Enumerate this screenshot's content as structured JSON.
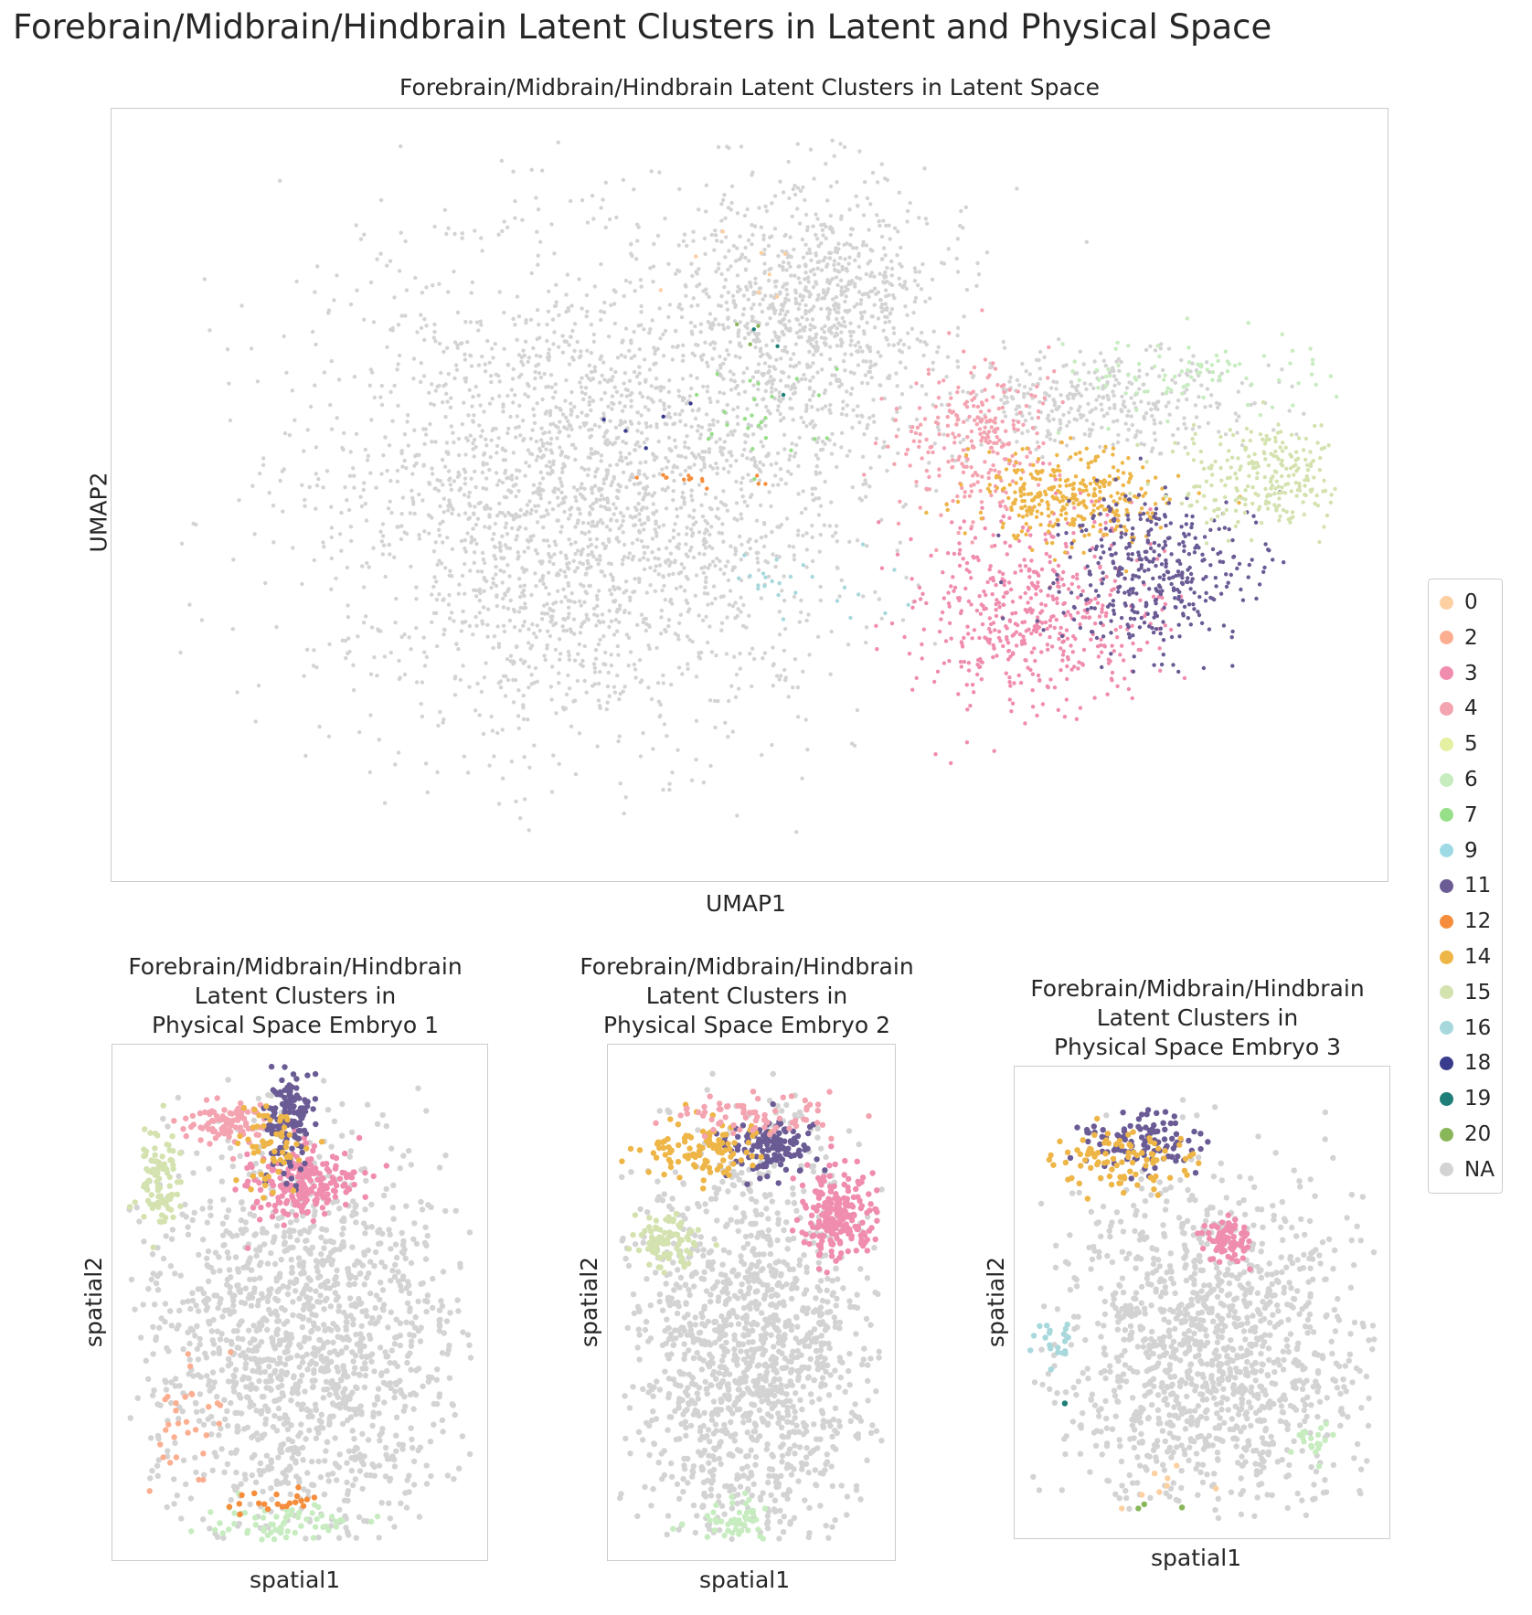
{
  "suptitle": "Forebrain/Midbrain/Hindbrain Latent Clusters in Latent and Physical Space",
  "panels": {
    "umap": {
      "title": "Forebrain/Midbrain/Hindbrain Latent Clusters in Latent Space",
      "xlabel": "UMAP1",
      "ylabel": "UMAP2"
    },
    "embryo1": {
      "title": "Forebrain/Midbrain/Hindbrain\nLatent Clusters in\nPhysical Space Embryo 1",
      "xlabel": "spatial1",
      "ylabel": "spatial2"
    },
    "embryo2": {
      "title": "Forebrain/Midbrain/Hindbrain\nLatent Clusters in\nPhysical Space Embryo 2",
      "xlabel": "spatial1",
      "ylabel": "spatial2"
    },
    "embryo3": {
      "title": "Forebrain/Midbrain/Hindbrain\nLatent Clusters in\nPhysical Space Embryo 3",
      "xlabel": "spatial1",
      "ylabel": "spatial2"
    }
  },
  "legend": [
    {
      "label": "0",
      "color": "#fdd0a2"
    },
    {
      "label": "2",
      "color": "#fcae91"
    },
    {
      "label": "3",
      "color": "#f08cae"
    },
    {
      "label": "4",
      "color": "#f4a3b0"
    },
    {
      "label": "5",
      "color": "#e6f0a3"
    },
    {
      "label": "6",
      "color": "#c7ecc0"
    },
    {
      "label": "7",
      "color": "#98df8a"
    },
    {
      "label": "9",
      "color": "#9edae5"
    },
    {
      "label": "11",
      "color": "#6b5b95"
    },
    {
      "label": "12",
      "color": "#f58d3c"
    },
    {
      "label": "14",
      "color": "#eeb547"
    },
    {
      "label": "15",
      "color": "#d3e2ae"
    },
    {
      "label": "16",
      "color": "#a6d8dc"
    },
    {
      "label": "18",
      "color": "#393b8c"
    },
    {
      "label": "19",
      "color": "#1f7f78"
    },
    {
      "label": "20",
      "color": "#8ab65a"
    },
    {
      "label": "NA",
      "color": "#d3d3d3"
    }
  ],
  "chart_data": [
    {
      "type": "scatter",
      "title": "Forebrain/Midbrain/Hindbrain Latent Clusters in Latent Space",
      "xlabel": "UMAP1",
      "ylabel": "UMAP2",
      "grid": false,
      "legend_position": "right",
      "series": [
        {
          "name": "NA",
          "regions": [
            {
              "center": [
                0.37,
                0.5
              ],
              "spread": [
                0.21,
                0.32
              ],
              "n": 2600
            },
            {
              "center": [
                0.55,
                0.25
              ],
              "spread": [
                0.1,
                0.17
              ],
              "n": 900
            },
            {
              "center": [
                0.78,
                0.38
              ],
              "spread": [
                0.12,
                0.06
              ],
              "n": 350
            }
          ]
        },
        {
          "name": "3",
          "regions": [
            {
              "center": [
                0.72,
                0.65
              ],
              "spread": [
                0.1,
                0.13
              ],
              "n": 500
            }
          ]
        },
        {
          "name": "4",
          "regions": [
            {
              "center": [
                0.68,
                0.43
              ],
              "spread": [
                0.06,
                0.1
              ],
              "n": 260
            }
          ]
        },
        {
          "name": "14",
          "regions": [
            {
              "center": [
                0.75,
                0.5
              ],
              "spread": [
                0.075,
                0.06
              ],
              "n": 330
            }
          ]
        },
        {
          "name": "11",
          "regions": [
            {
              "center": [
                0.82,
                0.6
              ],
              "spread": [
                0.08,
                0.1
              ],
              "n": 380
            }
          ]
        },
        {
          "name": "15",
          "regions": [
            {
              "center": [
                0.9,
                0.48
              ],
              "spread": [
                0.075,
                0.07
              ],
              "n": 260
            }
          ]
        },
        {
          "name": "6",
          "regions": [
            {
              "center": [
                0.86,
                0.34
              ],
              "spread": [
                0.1,
                0.05
              ],
              "n": 90
            }
          ]
        },
        {
          "name": "12",
          "regions": [
            {
              "center": [
                0.46,
                0.48
              ],
              "spread": [
                0.05,
                0.01
              ],
              "n": 14
            }
          ]
        },
        {
          "name": "18",
          "regions": [
            {
              "center": [
                0.43,
                0.42
              ],
              "spread": [
                0.05,
                0.05
              ],
              "n": 5
            }
          ]
        },
        {
          "name": "16",
          "regions": [
            {
              "center": [
                0.53,
                0.62
              ],
              "spread": [
                0.08,
                0.04
              ],
              "n": 25
            }
          ]
        },
        {
          "name": "7",
          "regions": [
            {
              "center": [
                0.51,
                0.4
              ],
              "spread": [
                0.06,
                0.07
              ],
              "n": 25
            }
          ]
        },
        {
          "name": "19",
          "regions": [
            {
              "center": [
                0.52,
                0.3
              ],
              "spread": [
                0.03,
                0.06
              ],
              "n": 3
            }
          ]
        },
        {
          "name": "20",
          "regions": [
            {
              "center": [
                0.48,
                0.28
              ],
              "spread": [
                0.03,
                0.04
              ],
              "n": 3
            }
          ]
        },
        {
          "name": "0",
          "regions": [
            {
              "center": [
                0.5,
                0.22
              ],
              "spread": [
                0.06,
                0.05
              ],
              "n": 8
            }
          ]
        }
      ]
    },
    {
      "type": "scatter",
      "title": "Forebrain/Midbrain/Hindbrain Latent Clusters in Physical Space Embryo 1",
      "xlabel": "spatial1",
      "ylabel": "spatial2",
      "grid": false,
      "series": [
        {
          "name": "NA",
          "regions": [
            {
              "center": [
                0.5,
                0.58
              ],
              "spread": [
                0.43,
                0.4
              ],
              "n": 1500
            }
          ]
        },
        {
          "name": "3",
          "regions": [
            {
              "center": [
                0.5,
                0.27
              ],
              "spread": [
                0.14,
                0.07
              ],
              "n": 200
            }
          ]
        },
        {
          "name": "4",
          "regions": [
            {
              "center": [
                0.3,
                0.15
              ],
              "spread": [
                0.12,
                0.04
              ],
              "n": 90
            }
          ]
        },
        {
          "name": "11",
          "regions": [
            {
              "center": [
                0.47,
                0.15
              ],
              "spread": [
                0.06,
                0.11
              ],
              "n": 150
            }
          ]
        },
        {
          "name": "14",
          "regions": [
            {
              "center": [
                0.43,
                0.2
              ],
              "spread": [
                0.1,
                0.09
              ],
              "n": 60
            }
          ]
        },
        {
          "name": "15",
          "regions": [
            {
              "center": [
                0.12,
                0.27
              ],
              "spread": [
                0.05,
                0.1
              ],
              "n": 90
            }
          ]
        },
        {
          "name": "6",
          "regions": [
            {
              "center": [
                0.45,
                0.93
              ],
              "spread": [
                0.2,
                0.05
              ],
              "n": 70
            }
          ]
        },
        {
          "name": "12",
          "regions": [
            {
              "center": [
                0.45,
                0.89
              ],
              "spread": [
                0.15,
                0.02
              ],
              "n": 20
            }
          ]
        },
        {
          "name": "2",
          "regions": [
            {
              "center": [
                0.2,
                0.7
              ],
              "spread": [
                0.1,
                0.15
              ],
              "n": 30
            }
          ]
        }
      ]
    },
    {
      "type": "scatter",
      "title": "Forebrain/Midbrain/Hindbrain Latent Clusters in Physical Space Embryo 2",
      "xlabel": "spatial1",
      "ylabel": "spatial2",
      "grid": false,
      "series": [
        {
          "name": "NA",
          "regions": [
            {
              "center": [
                0.5,
                0.6
              ],
              "spread": [
                0.43,
                0.4
              ],
              "n": 1400
            }
          ]
        },
        {
          "name": "3",
          "regions": [
            {
              "center": [
                0.8,
                0.33
              ],
              "spread": [
                0.13,
                0.08
              ],
              "n": 220
            }
          ]
        },
        {
          "name": "11",
          "regions": [
            {
              "center": [
                0.57,
                0.2
              ],
              "spread": [
                0.15,
                0.05
              ],
              "n": 140
            }
          ]
        },
        {
          "name": "14",
          "regions": [
            {
              "center": [
                0.35,
                0.2
              ],
              "spread": [
                0.2,
                0.06
              ],
              "n": 110
            }
          ]
        },
        {
          "name": "4",
          "regions": [
            {
              "center": [
                0.5,
                0.14
              ],
              "spread": [
                0.3,
                0.04
              ],
              "n": 70
            }
          ]
        },
        {
          "name": "15",
          "regions": [
            {
              "center": [
                0.2,
                0.38
              ],
              "spread": [
                0.1,
                0.05
              ],
              "n": 90
            }
          ]
        },
        {
          "name": "6",
          "regions": [
            {
              "center": [
                0.45,
                0.92
              ],
              "spread": [
                0.15,
                0.05
              ],
              "n": 50
            }
          ]
        }
      ]
    },
    {
      "type": "scatter",
      "title": "Forebrain/Midbrain/Hindbrain Latent Clusters in Physical Space Embryo 3",
      "xlabel": "spatial1",
      "ylabel": "spatial2",
      "grid": false,
      "series": [
        {
          "name": "NA",
          "regions": [
            {
              "center": [
                0.52,
                0.6
              ],
              "spread": [
                0.42,
                0.36
              ],
              "n": 1300
            }
          ]
        },
        {
          "name": "11",
          "regions": [
            {
              "center": [
                0.33,
                0.16
              ],
              "spread": [
                0.15,
                0.06
              ],
              "n": 100
            }
          ]
        },
        {
          "name": "14",
          "regions": [
            {
              "center": [
                0.3,
                0.2
              ],
              "spread": [
                0.18,
                0.07
              ],
              "n": 90
            }
          ]
        },
        {
          "name": "3",
          "regions": [
            {
              "center": [
                0.57,
                0.37
              ],
              "spread": [
                0.06,
                0.05
              ],
              "n": 80
            }
          ]
        },
        {
          "name": "16",
          "regions": [
            {
              "center": [
                0.1,
                0.58
              ],
              "spread": [
                0.05,
                0.05
              ],
              "n": 20
            }
          ]
        },
        {
          "name": "6",
          "regions": [
            {
              "center": [
                0.8,
                0.8
              ],
              "spread": [
                0.05,
                0.05
              ],
              "n": 20
            }
          ]
        },
        {
          "name": "0",
          "regions": [
            {
              "center": [
                0.4,
                0.9
              ],
              "spread": [
                0.15,
                0.05
              ],
              "n": 8
            }
          ]
        },
        {
          "name": "20",
          "regions": [
            {
              "center": [
                0.45,
                0.92
              ],
              "spread": [
                0.3,
                0.05
              ],
              "n": 4
            }
          ]
        },
        {
          "name": "19",
          "regions": [
            {
              "center": [
                0.13,
                0.72
              ],
              "spread": [
                0.01,
                0.01
              ],
              "n": 1
            }
          ]
        }
      ]
    }
  ]
}
